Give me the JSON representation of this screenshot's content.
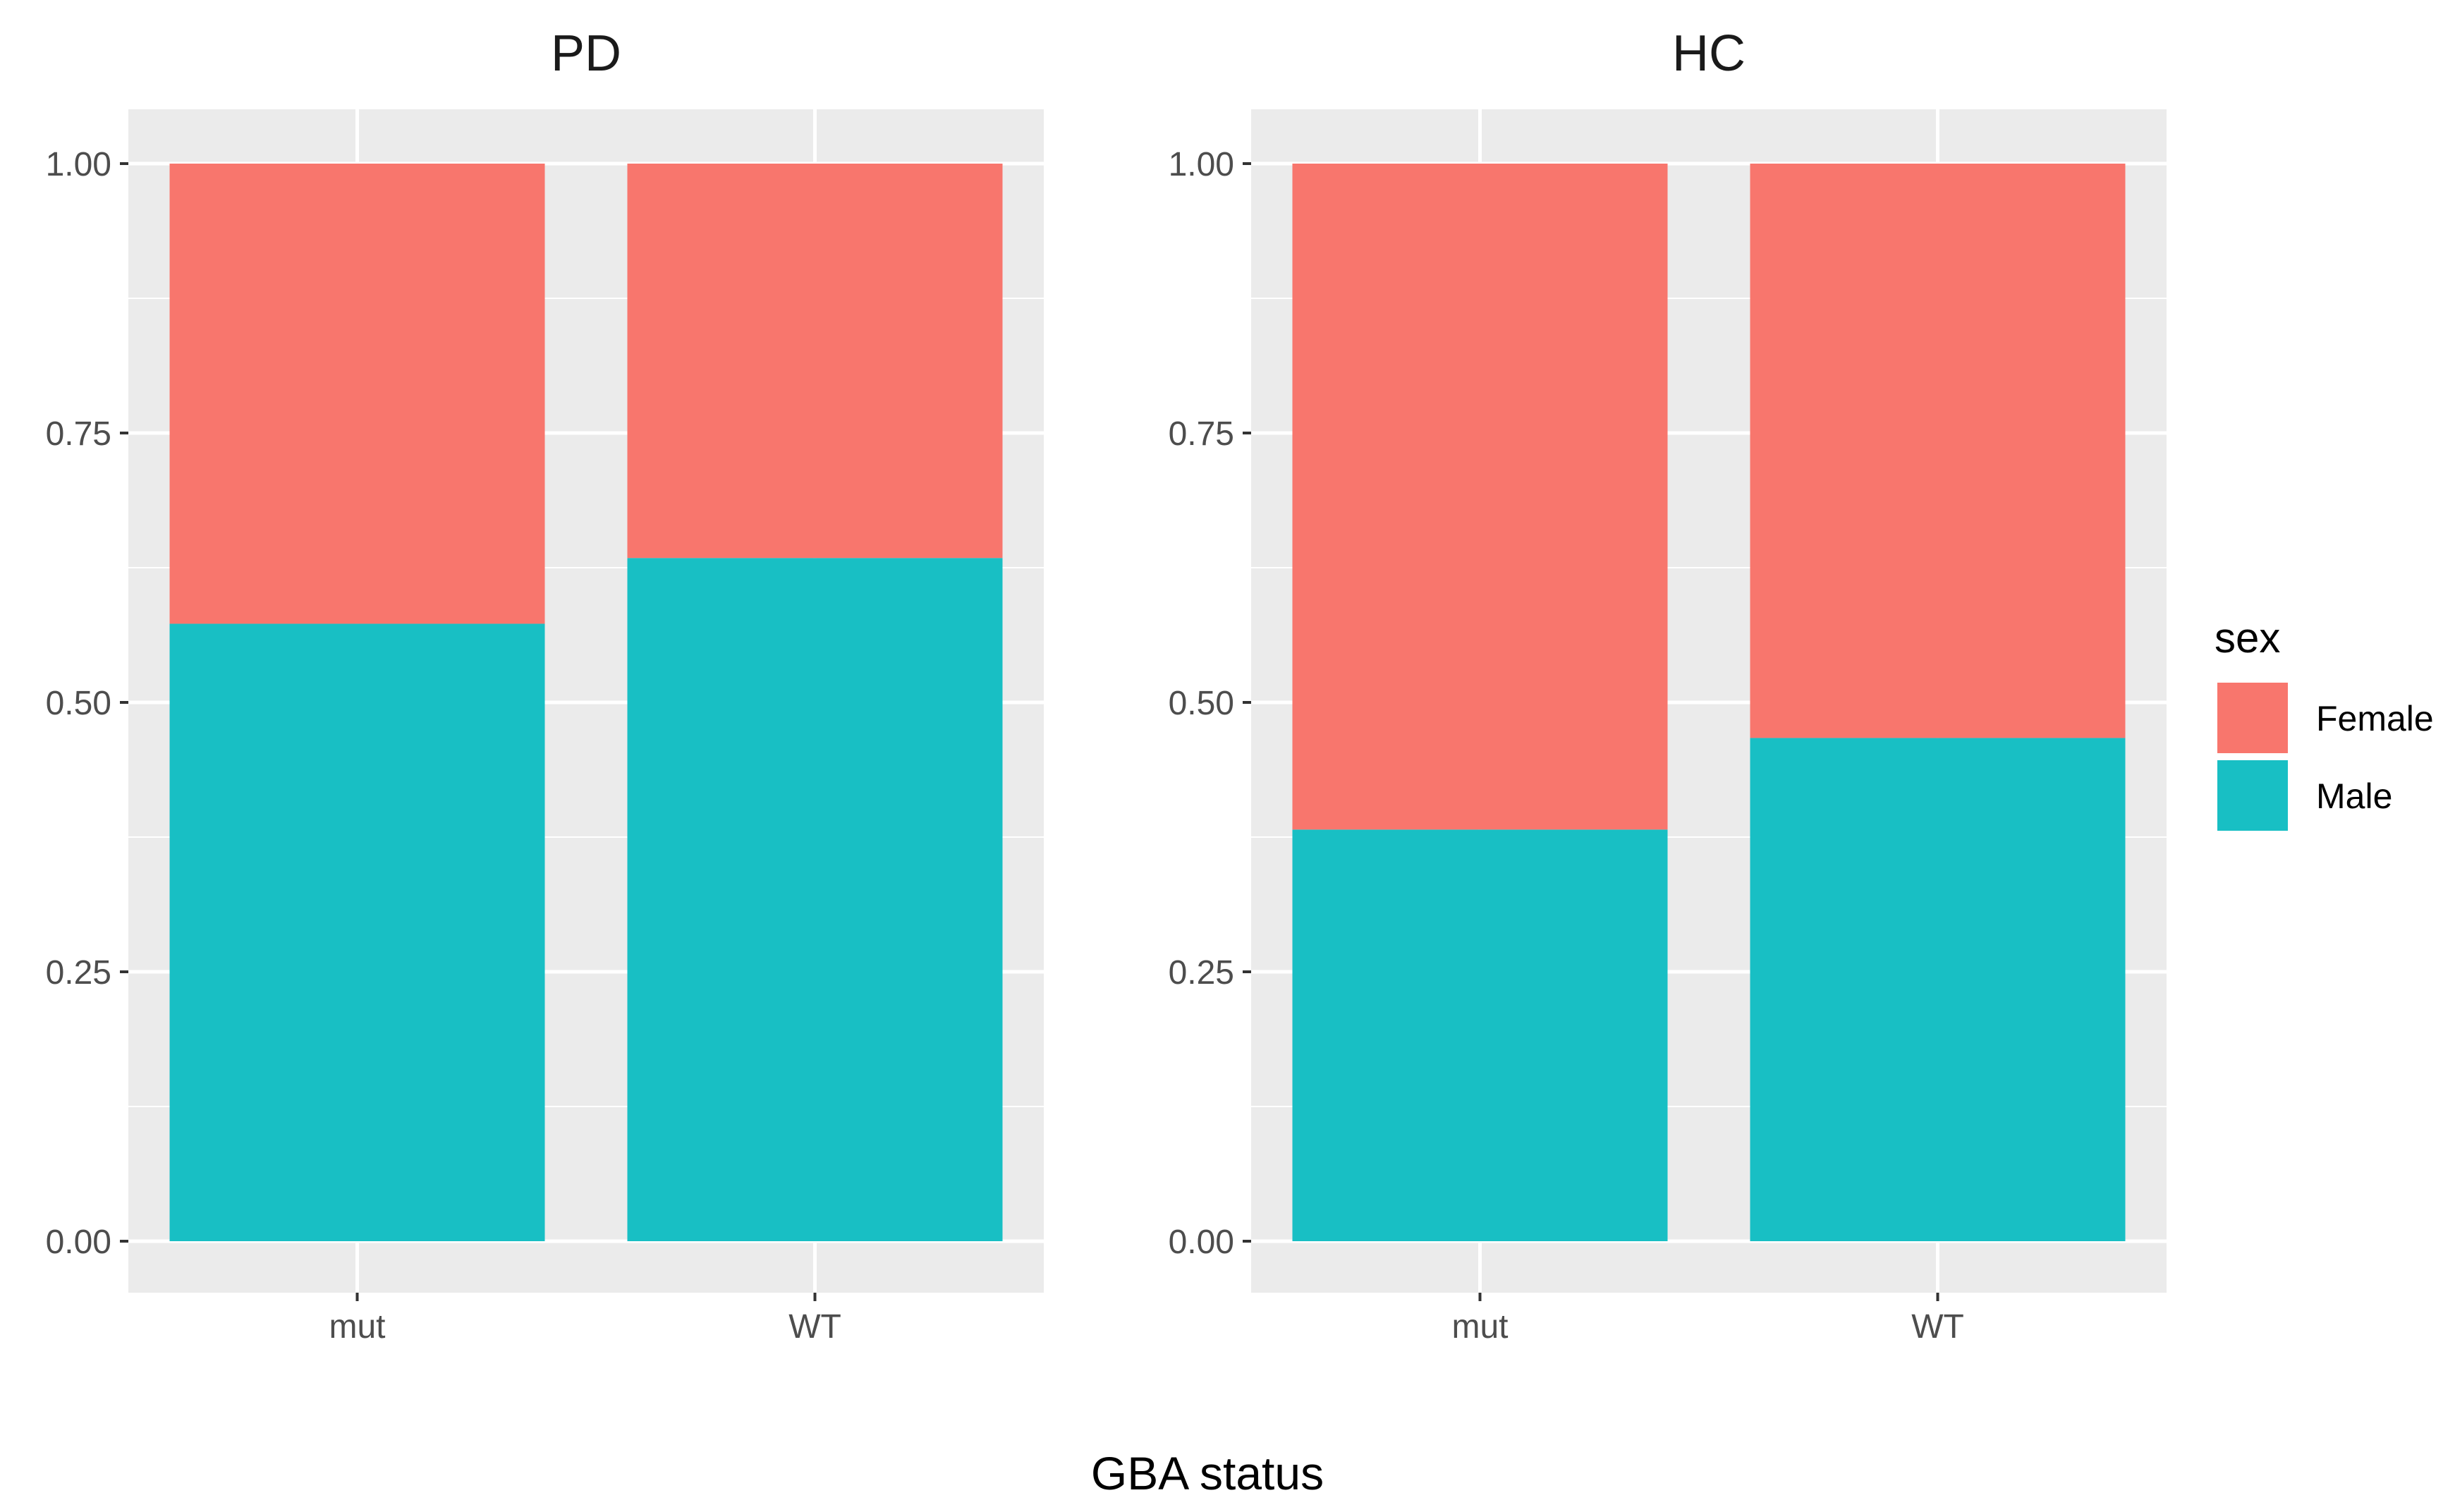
{
  "chart_data": {
    "type": "bar",
    "stacked": true,
    "xlabel": "GBA status",
    "ylabel": "",
    "ylim": [
      0,
      1
    ],
    "yticks": [
      "0.00",
      "0.25",
      "0.50",
      "0.75",
      "1.00"
    ],
    "categories": [
      "mut",
      "WT"
    ],
    "legend": {
      "title": "sex",
      "position": "right",
      "entries": [
        {
          "name": "Female",
          "color": "#F8766D"
        },
        {
          "name": "Male",
          "color": "#18BFC4"
        }
      ]
    },
    "panels": [
      {
        "title": "PD",
        "series": [
          {
            "name": "Male",
            "values": [
              0.573,
              0.634
            ]
          },
          {
            "name": "Female",
            "values": [
              0.427,
              0.366
            ]
          }
        ]
      },
      {
        "title": "HC",
        "series": [
          {
            "name": "Male",
            "values": [
              0.382,
              0.467
            ]
          },
          {
            "name": "Female",
            "values": [
              0.618,
              0.533
            ]
          }
        ]
      }
    ]
  }
}
